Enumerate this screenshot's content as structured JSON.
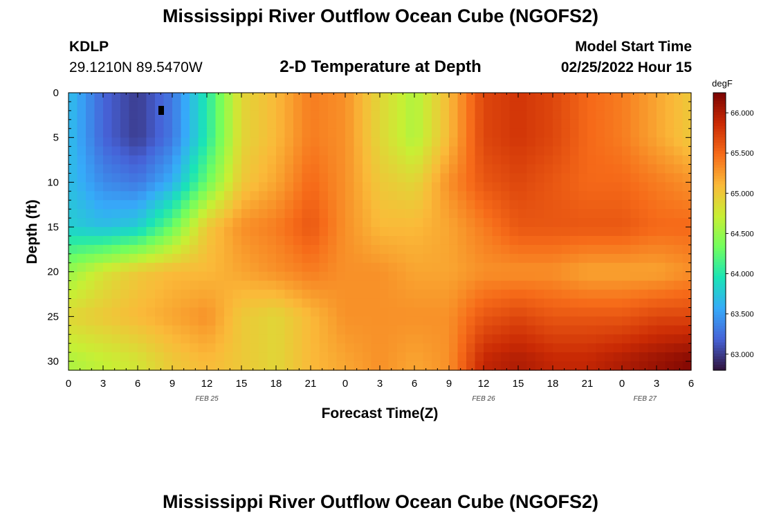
{
  "page": {
    "title": "Mississippi River Outflow Ocean Cube (NGOFS2)",
    "footer_title": "Mississippi River Outflow Ocean Cube (NGOFS2)",
    "station": "KDLP",
    "location": "29.1210N  89.5470W",
    "model_start_label": "Model Start Time",
    "model_start_value": "02/25/2022 Hour 15"
  },
  "chart_data": {
    "type": "heatmap",
    "title": "2-D Temperature at Depth",
    "xlabel": "Forecast Time(Z)",
    "ylabel": "Depth (ft)",
    "x_hours_range": [
      0,
      54
    ],
    "ylim": [
      0,
      31
    ],
    "x_ticks": [
      "0",
      "3",
      "6",
      "9",
      "12",
      "15",
      "18",
      "21",
      "0",
      "3",
      "6",
      "9",
      "12",
      "15",
      "18",
      "21",
      "0",
      "3",
      "6"
    ],
    "y_ticks": [
      "0",
      "5",
      "10",
      "15",
      "20",
      "25",
      "30"
    ],
    "date_labels": [
      "FEB 25",
      "FEB 26",
      "FEB 27"
    ],
    "colorbar": {
      "unit": "degF",
      "range": [
        62.8,
        66.25
      ],
      "ticks": [
        "66.000",
        "65.500",
        "65.000",
        "64.500",
        "64.000",
        "63.500",
        "63.000"
      ],
      "stops": [
        "#30123b",
        "#4662d7",
        "#36aaf9",
        "#1ae4b6",
        "#72fe5e",
        "#c8ef34",
        "#faba39",
        "#f66b19",
        "#ca2a04",
        "#7a0403"
      ]
    },
    "temperature_field_degF": {
      "depths_ft": [
        0,
        5,
        10,
        15,
        20,
        25,
        30
      ],
      "hours": [
        0,
        3,
        6,
        9,
        12,
        15,
        18,
        21,
        24,
        27,
        30,
        33,
        36,
        39,
        42,
        45,
        48,
        51,
        54
      ],
      "values": [
        [
          63.7,
          63.2,
          63.0,
          63.3,
          64.0,
          64.9,
          65.1,
          65.4,
          65.3,
          64.9,
          64.6,
          65.1,
          65.7,
          65.8,
          65.7,
          65.5,
          65.4,
          65.2,
          65.0
        ],
        [
          63.7,
          63.2,
          63.0,
          63.3,
          64.0,
          64.9,
          65.1,
          65.4,
          65.3,
          64.9,
          64.6,
          65.1,
          65.7,
          65.8,
          65.7,
          65.5,
          65.4,
          65.2,
          65.0
        ],
        [
          63.7,
          63.4,
          63.3,
          63.6,
          64.3,
          65.0,
          65.2,
          65.5,
          65.3,
          65.0,
          64.9,
          65.3,
          65.6,
          65.7,
          65.6,
          65.5,
          65.5,
          65.4,
          65.3
        ],
        [
          63.8,
          63.7,
          63.8,
          64.3,
          65.0,
          65.3,
          65.4,
          65.6,
          65.3,
          65.1,
          65.1,
          65.2,
          65.4,
          65.6,
          65.6,
          65.6,
          65.6,
          65.5,
          65.5
        ],
        [
          64.5,
          64.8,
          65.0,
          65.1,
          65.1,
          65.2,
          65.3,
          65.4,
          65.3,
          65.3,
          65.2,
          65.2,
          65.3,
          65.3,
          65.3,
          65.2,
          65.2,
          65.2,
          65.3
        ],
        [
          64.9,
          65.0,
          65.1,
          65.2,
          65.3,
          65.0,
          64.9,
          65.1,
          65.3,
          65.3,
          65.3,
          65.3,
          65.6,
          65.7,
          65.6,
          65.6,
          65.6,
          65.7,
          65.7
        ],
        [
          64.6,
          64.7,
          64.8,
          65.0,
          65.1,
          65.0,
          64.9,
          65.1,
          65.2,
          65.3,
          65.2,
          65.3,
          65.9,
          66.0,
          65.9,
          65.9,
          66.0,
          66.1,
          66.2
        ]
      ]
    }
  }
}
